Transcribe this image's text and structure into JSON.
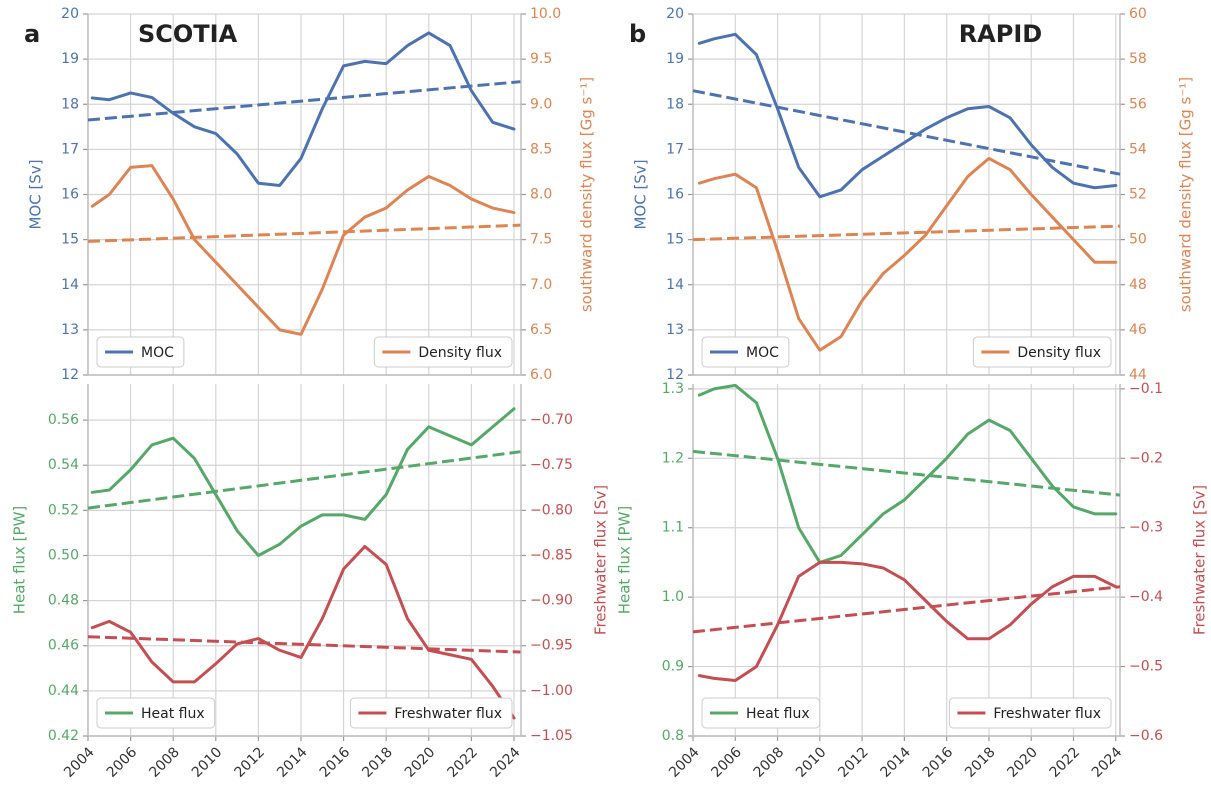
{
  "chart_data": [
    {
      "type": "line",
      "panel_label": "a",
      "title": "SCOTIA",
      "ylabel": "MOC [Sv]",
      "y2label": "southward density flux [Gg s⁻¹]",
      "xlim": [
        2004,
        2024.33
      ],
      "ylim": [
        12,
        20
      ],
      "yticks": [
        12,
        13,
        14,
        15,
        16,
        17,
        18,
        19,
        20
      ],
      "y2lim": [
        6,
        10
      ],
      "y2ticks": [
        {
          "value": 6,
          "label": "6.0"
        },
        6.5,
        {
          "value": 7,
          "label": "7.0"
        },
        7.5,
        {
          "value": 8,
          "label": "8.0"
        },
        8.5,
        {
          "value": 9,
          "label": "9.0"
        },
        9.5,
        {
          "value": 10,
          "label": "10.0"
        }
      ],
      "grid": true,
      "x": [
        2004.2,
        2005,
        2006,
        2007,
        2008,
        2009,
        2010,
        2011,
        2012,
        2013,
        2014,
        2015,
        2016,
        2017,
        2018,
        2019,
        2020,
        2021,
        2022,
        2023,
        2024
      ],
      "series": [
        {
          "name": "MOC",
          "color": "#4c72b0",
          "legend": "lower left",
          "values": [
            18.14,
            18.1,
            18.25,
            18.15,
            17.8,
            17.5,
            17.35,
            16.9,
            16.25,
            16.2,
            16.8,
            17.9,
            18.85,
            18.95,
            18.9,
            19.3,
            19.58,
            19.3,
            18.3,
            17.6,
            17.45
          ]
        },
        {
          "name": "Density flux",
          "color": "#dd8452",
          "axis": "y2",
          "legend": "lower right",
          "values": [
            7.87,
            8.0,
            8.3,
            8.32,
            7.95,
            7.5,
            7.25,
            7.0,
            6.75,
            6.5,
            6.45,
            6.95,
            7.55,
            7.75,
            7.85,
            8.05,
            8.2,
            8.1,
            7.95,
            7.85,
            7.8
          ]
        },
        {
          "color": "#4c72b0",
          "style": "dashed",
          "x": [
            2004,
            2024.3
          ],
          "values": [
            17.65,
            18.5
          ]
        },
        {
          "color": "#dd8452",
          "style": "dashed",
          "axis": "y2",
          "x": [
            2004,
            2024.3
          ],
          "values": [
            7.48,
            7.66
          ]
        }
      ]
    },
    {
      "type": "line",
      "ylabel": "Heat flux [PW]",
      "y2label": "Freshwater flux [Sv]",
      "xlim": [
        2004,
        2024.33
      ],
      "xticks": [
        2004,
        2006,
        2008,
        2010,
        2012,
        2014,
        2016,
        2018,
        2020,
        2022,
        2024
      ],
      "ylim": [
        0.42,
        0.576
      ],
      "yticks": [
        0.42,
        0.44,
        0.46,
        0.48,
        {
          "value": 0.5,
          "label": "0.50"
        },
        0.52,
        0.54,
        0.56
      ],
      "y2lim": [
        -1.05,
        -0.66
      ],
      "y2ticks": [
        {
          "value": -1.05,
          "label": "−1.05"
        },
        {
          "value": -1,
          "label": "−1.00"
        },
        {
          "value": -0.95,
          "label": "−0.95"
        },
        {
          "value": -0.9,
          "label": "−0.90"
        },
        {
          "value": -0.85,
          "label": "−0.85"
        },
        {
          "value": -0.8,
          "label": "−0.80"
        },
        {
          "value": -0.75,
          "label": "−0.75"
        },
        {
          "value": -0.7,
          "label": "−0.70"
        }
      ],
      "grid": true,
      "x": [
        2004.2,
        2005,
        2006,
        2007,
        2008,
        2009,
        2010,
        2011,
        2012,
        2013,
        2014,
        2015,
        2016,
        2017,
        2018,
        2019,
        2020,
        2021,
        2022,
        2023,
        2024
      ],
      "series": [
        {
          "name": "Heat flux",
          "color": "#55a868",
          "legend": "lower left",
          "values": [
            0.528,
            0.529,
            0.538,
            0.549,
            0.552,
            0.543,
            0.527,
            0.511,
            0.5,
            0.505,
            0.513,
            0.518,
            0.518,
            0.516,
            0.527,
            0.547,
            0.557,
            0.553,
            0.549,
            0.557,
            0.565
          ]
        },
        {
          "name": "Freshwater flux",
          "color": "#c44e52",
          "axis": "y2",
          "legend": "lower right",
          "values": [
            -0.93,
            -0.923,
            -0.935,
            -0.968,
            -0.99,
            -0.99,
            -0.97,
            -0.948,
            -0.942,
            -0.955,
            -0.963,
            -0.92,
            -0.865,
            -0.84,
            -0.86,
            -0.92,
            -0.955,
            -0.96,
            -0.965,
            -0.995,
            -1.03
          ]
        },
        {
          "color": "#55a868",
          "style": "dashed",
          "x": [
            2004,
            2024.3
          ],
          "values": [
            0.521,
            0.546
          ]
        },
        {
          "color": "#c44e52",
          "style": "dashed",
          "axis": "y2",
          "x": [
            2004,
            2024.3
          ],
          "values": [
            -0.94,
            -0.957
          ]
        }
      ]
    },
    {
      "type": "line",
      "panel_label": "b",
      "title": "RAPID",
      "ylabel": "MOC [Sv]",
      "y2label": "southward density flux [Gg s⁻¹]",
      "xlim": [
        2004,
        2024.2
      ],
      "ylim": [
        12,
        20
      ],
      "yticks": [
        12,
        13,
        14,
        15,
        16,
        17,
        18,
        19,
        20
      ],
      "y2lim": [
        44,
        60
      ],
      "y2ticks": [
        44,
        46,
        48,
        50,
        52,
        54,
        56,
        58,
        60
      ],
      "grid": true,
      "x": [
        2004.3,
        2005,
        2006,
        2007,
        2008,
        2009,
        2010,
        2011,
        2012,
        2013,
        2014,
        2015,
        2016,
        2017,
        2018,
        2019,
        2020,
        2021,
        2022,
        2023,
        2024
      ],
      "series": [
        {
          "name": "MOC",
          "color": "#4c72b0",
          "legend": "lower left",
          "values": [
            19.35,
            19.45,
            19.55,
            19.1,
            17.9,
            16.6,
            15.95,
            16.1,
            16.55,
            16.85,
            17.15,
            17.45,
            17.7,
            17.9,
            17.95,
            17.7,
            17.1,
            16.6,
            16.25,
            16.15,
            16.2
          ]
        },
        {
          "name": "Density flux",
          "color": "#dd8452",
          "axis": "y2",
          "legend": "lower right",
          "values": [
            52.5,
            52.7,
            52.9,
            52.3,
            49.5,
            46.5,
            45.1,
            45.7,
            47.3,
            48.5,
            49.3,
            50.2,
            51.5,
            52.8,
            53.6,
            53.1,
            52.0,
            51.0,
            50.0,
            49.0,
            49.0
          ]
        },
        {
          "color": "#4c72b0",
          "style": "dashed",
          "x": [
            2004,
            2024.2
          ],
          "values": [
            18.3,
            16.45
          ]
        },
        {
          "color": "#dd8452",
          "style": "dashed",
          "axis": "y2",
          "x": [
            2004,
            2024.2
          ],
          "values": [
            50.0,
            50.6
          ]
        }
      ]
    },
    {
      "type": "line",
      "ylabel": "Heat flux [PW]",
      "y2label": "Freshwater flux [Sv]",
      "xlim": [
        2004,
        2024.2
      ],
      "xticks": [
        2004,
        2006,
        2008,
        2010,
        2012,
        2014,
        2016,
        2018,
        2020,
        2022,
        2024
      ],
      "ylim": [
        0.8,
        1.307
      ],
      "yticks": [
        0.8,
        0.9,
        {
          "value": 1,
          "label": "1.0"
        },
        1.1,
        1.2,
        1.3
      ],
      "y2lim": [
        -0.6,
        -0.093
      ],
      "y2ticks": [
        {
          "value": -0.6,
          "label": "−0.6"
        },
        {
          "value": -0.5,
          "label": "−0.5"
        },
        {
          "value": -0.4,
          "label": "−0.4"
        },
        {
          "value": -0.3,
          "label": "−0.3"
        },
        {
          "value": -0.2,
          "label": "−0.2"
        },
        {
          "value": -0.1,
          "label": "−0.1"
        }
      ],
      "grid": true,
      "x": [
        2004.3,
        2005,
        2006,
        2007,
        2008,
        2009,
        2010,
        2011,
        2012,
        2013,
        2014,
        2015,
        2016,
        2017,
        2018,
        2019,
        2020,
        2021,
        2022,
        2023,
        2024
      ],
      "series": [
        {
          "name": "Heat flux",
          "color": "#55a868",
          "legend": "lower left",
          "values": [
            1.291,
            1.3,
            1.305,
            1.28,
            1.2,
            1.1,
            1.05,
            1.06,
            1.09,
            1.12,
            1.14,
            1.17,
            1.2,
            1.235,
            1.255,
            1.24,
            1.2,
            1.16,
            1.13,
            1.12,
            1.12
          ]
        },
        {
          "name": "Freshwater flux",
          "color": "#c44e52",
          "axis": "y2",
          "legend": "lower right",
          "values": [
            -0.513,
            -0.517,
            -0.52,
            -0.5,
            -0.44,
            -0.37,
            -0.35,
            -0.35,
            -0.352,
            -0.358,
            -0.375,
            -0.405,
            -0.435,
            -0.46,
            -0.46,
            -0.44,
            -0.41,
            -0.385,
            -0.37,
            -0.37,
            -0.385
          ]
        },
        {
          "color": "#55a868",
          "style": "dashed",
          "x": [
            2004,
            2024.2
          ],
          "values": [
            1.21,
            1.147
          ]
        },
        {
          "color": "#c44e52",
          "style": "dashed",
          "axis": "y2",
          "x": [
            2004,
            2024.2
          ],
          "values": [
            -0.45,
            -0.385
          ]
        }
      ]
    }
  ]
}
